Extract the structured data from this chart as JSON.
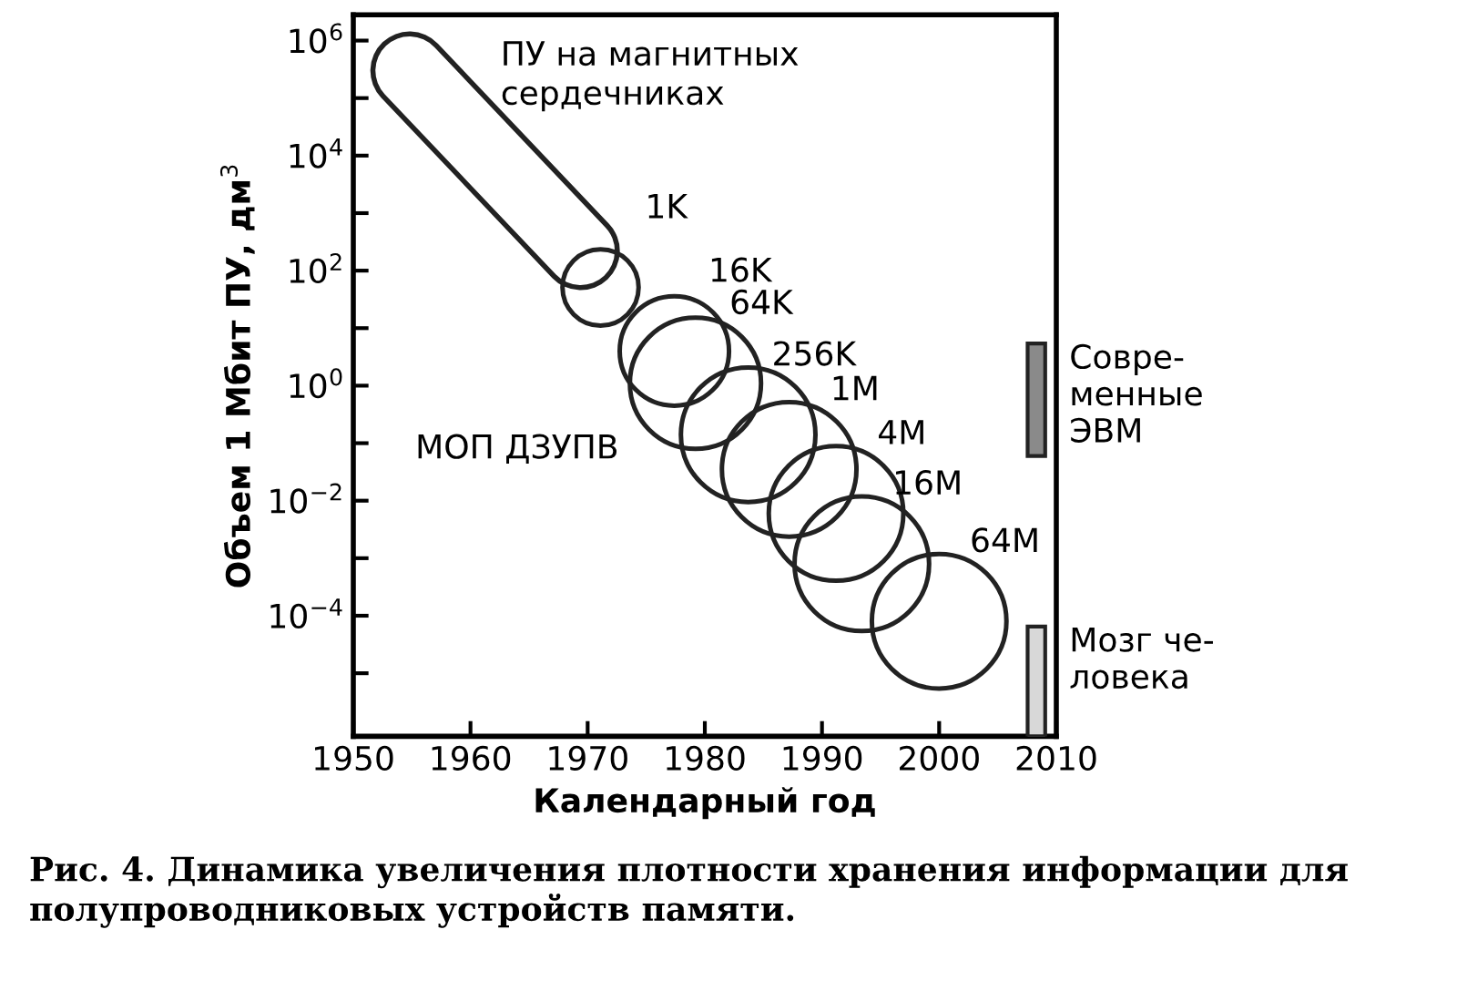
{
  "chart_data": {
    "type": "bubble",
    "xlabel": "Календарный год",
    "ylabel": "Объем 1 Мбит ПУ, дм$^{3}$",
    "xlim": [
      1950,
      2010
    ],
    "xticks": [
      1950,
      1960,
      1970,
      1980,
      1990,
      2000,
      2010
    ],
    "ylim": [
      8e-07,
      2800000.0
    ],
    "log": "y",
    "yticks": [
      {
        "value": 1000000.0,
        "label": "10$^{6}$"
      },
      {
        "value": 100000.0,
        "label": null
      },
      {
        "value": 10000.0,
        "label": "10$^{4}$"
      },
      {
        "value": 1000.0,
        "label": null
      },
      {
        "value": 100,
        "label": "10$^{2}$"
      },
      {
        "value": 10,
        "label": null
      },
      {
        "value": 1,
        "label": "10$^{0}$"
      },
      {
        "value": 0.1,
        "label": null
      },
      {
        "value": 0.01,
        "label": "10$^{−2}$"
      },
      {
        "value": 0.001,
        "label": null
      },
      {
        "value": 0.0001,
        "label": "10$^{−4}$"
      },
      {
        "value": 1e-05,
        "label": null
      }
    ],
    "grid": false,
    "legend": false,
    "series": [
      {
        "name": "МОП ДЗУПВ",
        "color": "#222222",
        "x": [
          1971.1,
          1977.4,
          1979.2,
          1983.7,
          1987.2,
          1991.2,
          1993.4,
          2000.0
        ],
        "values": [
          51,
          4,
          1.1,
          0.14,
          0.035,
          0.006,
          0.0008,
          8e-05
        ],
        "sizes": [
          0.32,
          0.66,
          0.95,
          1,
          1,
          1,
          1,
          1
        ]
      },
      {
        "type": "line",
        "name": "ПУ на магнитных\nсердечниках",
        "color": "#222222",
        "x": [
          1954.8,
          1969.4
        ],
        "values": [
          300000,
          220
        ]
      },
      {
        "type": "bar",
        "name": "Совре-\nменные\nЭВМ",
        "color": "#8a8a8a",
        "x": [
          2008.3
        ],
        "base": [
          0.06
        ],
        "values": [
          5.34
        ]
      },
      {
        "type": "bar",
        "name": "Мозг че-\nловека",
        "color": "#d8d8d8",
        "x": [
          2008.3
        ],
        "base": [
          8e-07
        ],
        "values": [
          6.42e-05
        ]
      }
    ],
    "annotations": [
      {
        "text": "1K",
        "x": 1971.1,
        "y": 51
      },
      {
        "text": "16K",
        "x": 1977.4,
        "y": 4
      },
      {
        "text": "64K",
        "x": 1979.2,
        "y": 1.1
      },
      {
        "text": "256K",
        "x": 1983.7,
        "y": 0.14
      },
      {
        "text": "1M",
        "x": 1987.2,
        "y": 0.035
      },
      {
        "text": "4M",
        "x": 1991.2,
        "y": 0.006
      },
      {
        "text": "16M",
        "x": 1993.4,
        "y": 0.0008
      },
      {
        "text": "64M",
        "x": 2000.0,
        "y": 8e-05
      },
      "Рис. 4. Динамика увеличения плотности хранения информации для полупроводниковых устройств памяти."
    ]
  }
}
